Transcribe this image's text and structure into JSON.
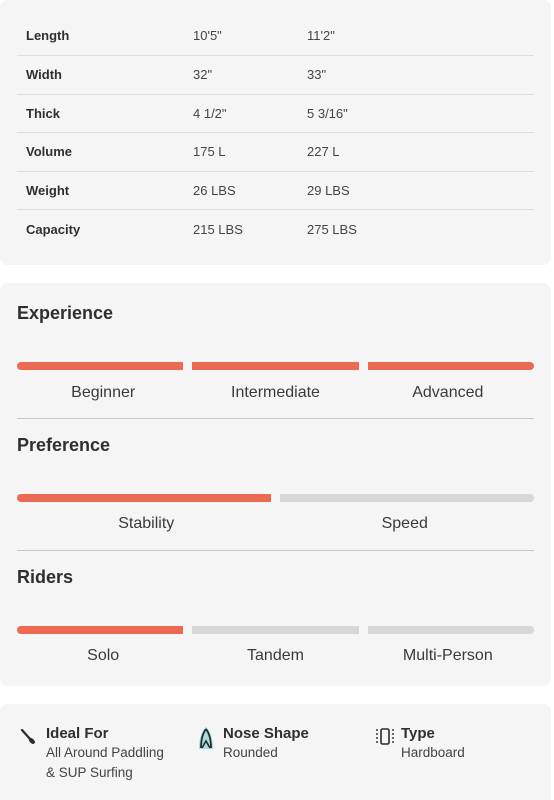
{
  "specs": [
    {
      "label": "Length",
      "v1": "10'5\"",
      "v2": "11'2\""
    },
    {
      "label": "Width",
      "v1": "32\"",
      "v2": "33\""
    },
    {
      "label": "Thick",
      "v1": "4 1/2\"",
      "v2": "5 3/16\""
    },
    {
      "label": "Volume",
      "v1": "175 L",
      "v2": "227 L"
    },
    {
      "label": "Weight",
      "v1": "26 LBS",
      "v2": "29 LBS"
    },
    {
      "label": "Capacity",
      "v1": "215 LBS",
      "v2": "275 LBS"
    }
  ],
  "experience": {
    "title": "Experience",
    "options": [
      "Beginner",
      "Intermediate",
      "Advanced"
    ],
    "active": [
      true,
      true,
      true
    ]
  },
  "preference": {
    "title": "Preference",
    "options": [
      "Stability",
      "Speed"
    ],
    "active": [
      true,
      false
    ]
  },
  "riders": {
    "title": "Riders",
    "options": [
      "Solo",
      "Tandem",
      "Multi-Person"
    ],
    "active": [
      true,
      false,
      false
    ]
  },
  "features": {
    "ideal_for": {
      "title": "Ideal For",
      "line1": "All Around Paddling",
      "line2": "& SUP Surfing",
      "icon": "paddle-icon"
    },
    "nose_shape": {
      "title": "Nose Shape",
      "value": "Rounded",
      "icon": "board-nose-icon"
    },
    "type": {
      "title": "Type",
      "value": "Hardboard",
      "icon": "board-type-icon"
    }
  },
  "colors": {
    "accent": "#ec6a52",
    "inactive": "#d7d7d7",
    "card": "#f5f5f5"
  }
}
